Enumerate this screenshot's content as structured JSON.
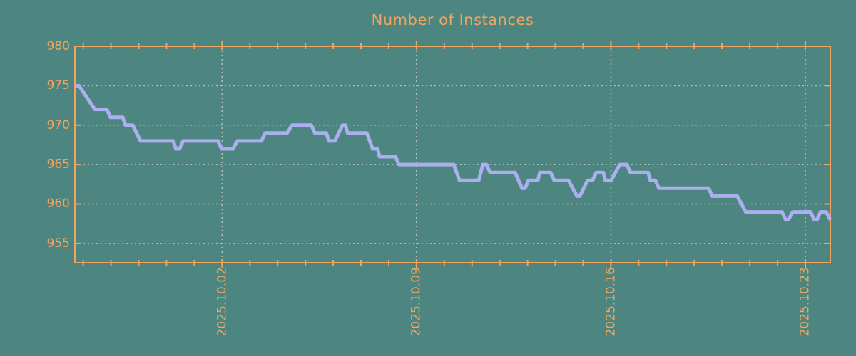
{
  "colors": {
    "background": "#4d8680",
    "axis": "#f0a45e",
    "label_text": "#f0a45e",
    "series_line": "#abaff0",
    "gridline": "#b9c1be"
  },
  "chart_data": {
    "type": "line",
    "title": "Number of Instances",
    "xlabel": "",
    "ylabel": "",
    "legend": "none",
    "grid": {
      "horizontal_at": [
        955,
        960,
        965,
        970,
        975
      ],
      "vertical_at_major_ticks": true,
      "style": "dotted"
    },
    "y_axis": {
      "ticks": [
        955,
        960,
        965,
        970,
        975,
        980
      ],
      "ylim": [
        952.55,
        980
      ]
    },
    "x_axis": {
      "unit": "days_from_left_edge",
      "xlim": [
        0,
        27.2
      ],
      "minor_tick_start": 0.3,
      "minor_tick_interval": 1,
      "minor_tick_count": 27,
      "major_ticks": [
        {
          "t": 5.3,
          "label": "2025.10.02"
        },
        {
          "t": 12.3,
          "label": "2025.10.09"
        },
        {
          "t": 19.3,
          "label": "2025.10.16"
        },
        {
          "t": 26.3,
          "label": "2025.10.23"
        }
      ]
    },
    "series": [
      {
        "color": "#abaff0",
        "points": [
          [
            0.0,
            975
          ],
          [
            0.15,
            975
          ],
          [
            0.72,
            972
          ],
          [
            1.15,
            972
          ],
          [
            1.28,
            971
          ],
          [
            1.72,
            971
          ],
          [
            1.82,
            970
          ],
          [
            2.08,
            970
          ],
          [
            2.36,
            968
          ],
          [
            3.54,
            968
          ],
          [
            3.64,
            967
          ],
          [
            3.77,
            967
          ],
          [
            3.9,
            968
          ],
          [
            5.15,
            968
          ],
          [
            5.28,
            967
          ],
          [
            5.69,
            967
          ],
          [
            5.85,
            968
          ],
          [
            6.72,
            968
          ],
          [
            6.85,
            969
          ],
          [
            7.64,
            969
          ],
          [
            7.82,
            970
          ],
          [
            8.51,
            970
          ],
          [
            8.64,
            969
          ],
          [
            9.05,
            969
          ],
          [
            9.15,
            968
          ],
          [
            9.36,
            968
          ],
          [
            9.64,
            970
          ],
          [
            9.74,
            970
          ],
          [
            9.82,
            969
          ],
          [
            10.51,
            969
          ],
          [
            10.72,
            967
          ],
          [
            10.9,
            967
          ],
          [
            10.97,
            966
          ],
          [
            11.54,
            966
          ],
          [
            11.67,
            965
          ],
          [
            13.64,
            965
          ],
          [
            13.85,
            963
          ],
          [
            14.54,
            963
          ],
          [
            14.69,
            965
          ],
          [
            14.82,
            965
          ],
          [
            14.95,
            964
          ],
          [
            15.85,
            964
          ],
          [
            16.1,
            962
          ],
          [
            16.21,
            962
          ],
          [
            16.33,
            963
          ],
          [
            16.67,
            963
          ],
          [
            16.74,
            964
          ],
          [
            17.13,
            964
          ],
          [
            17.26,
            963
          ],
          [
            17.77,
            963
          ],
          [
            18.08,
            961
          ],
          [
            18.18,
            961
          ],
          [
            18.46,
            963
          ],
          [
            18.64,
            963
          ],
          [
            18.77,
            964
          ],
          [
            19.03,
            964
          ],
          [
            19.1,
            963
          ],
          [
            19.31,
            963
          ],
          [
            19.62,
            965
          ],
          [
            19.87,
            965
          ],
          [
            20.0,
            964
          ],
          [
            20.64,
            964
          ],
          [
            20.72,
            963
          ],
          [
            20.9,
            963
          ],
          [
            21.03,
            962
          ],
          [
            22.82,
            962
          ],
          [
            22.95,
            961
          ],
          [
            23.85,
            961
          ],
          [
            24.15,
            959
          ],
          [
            25.46,
            959
          ],
          [
            25.59,
            958
          ],
          [
            25.69,
            958
          ],
          [
            25.85,
            959
          ],
          [
            26.49,
            959
          ],
          [
            26.62,
            958
          ],
          [
            26.72,
            958
          ],
          [
            26.85,
            959
          ],
          [
            27.05,
            959
          ],
          [
            27.2,
            958
          ]
        ]
      }
    ]
  }
}
